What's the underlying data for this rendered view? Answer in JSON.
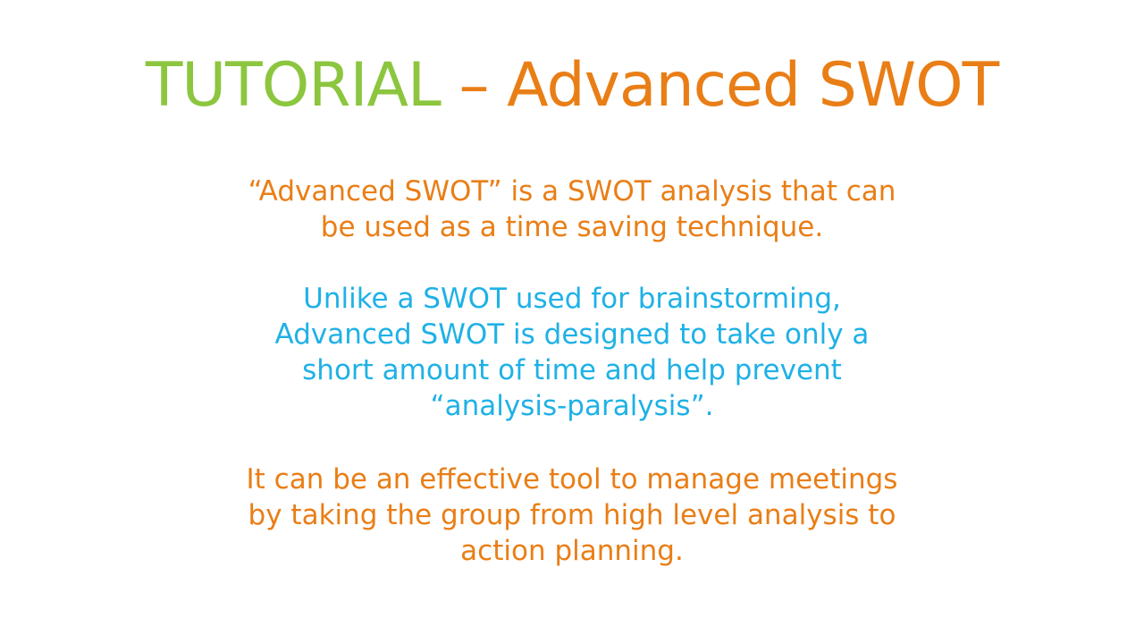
{
  "slide": {
    "title": {
      "part1": "TUTORIAL",
      "separator": " – ",
      "part2": "Advanced SWOT"
    },
    "paragraphs": [
      {
        "lines": [
          "“Advanced SWOT” is a SWOT analysis that can",
          "be used as a time saving technique."
        ]
      },
      {
        "lines": [
          "Unlike a SWOT used for brainstorming,",
          "Advanced SWOT is designed to take only a",
          "short amount of time and help prevent",
          "“analysis-paralysis”."
        ]
      },
      {
        "lines": [
          "It can be an effective tool to manage meetings",
          "by taking the group from high level analysis to",
          "action planning."
        ]
      }
    ],
    "colors": {
      "green": "#8cc63f",
      "orange": "#e97e16",
      "blue": "#1fb1e6"
    }
  }
}
